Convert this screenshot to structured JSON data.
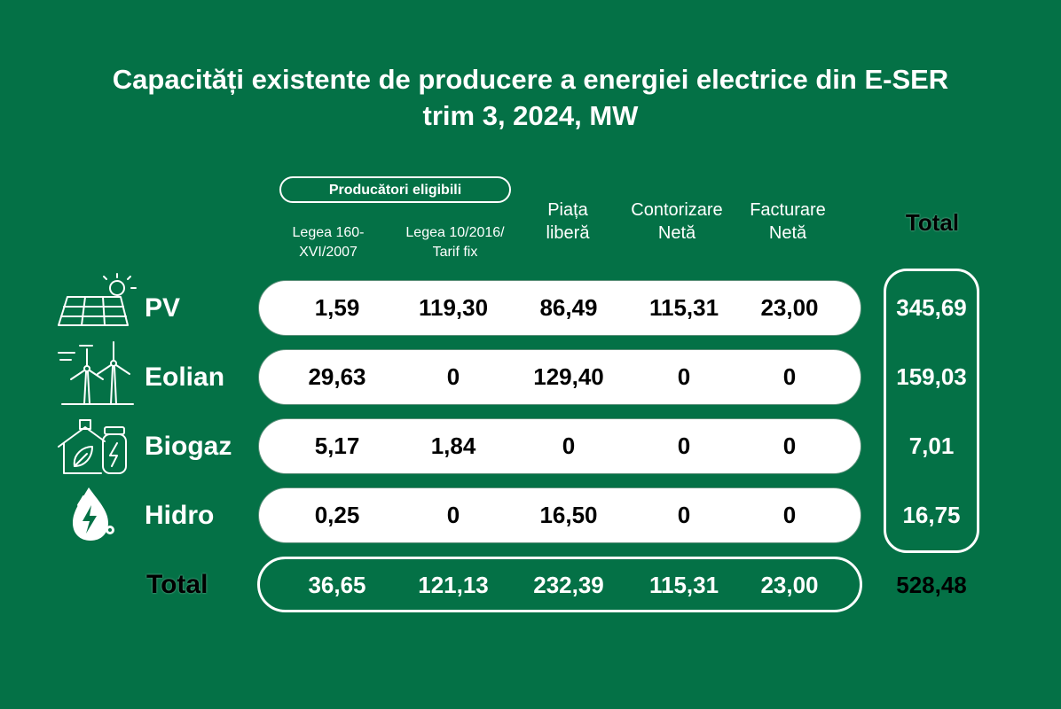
{
  "title_line1": "Capacități existente de producere a energiei electrice din E-SER",
  "title_line2": "trim 3, 2024, MW",
  "group_header": "Producători eligibili",
  "columns": [
    {
      "line1": "Legea 160-",
      "line2": "XVI/2007"
    },
    {
      "line1": "Legea 10/2016/",
      "line2": "Tarif fix"
    },
    {
      "line1": "Piața",
      "line2": "liberă"
    },
    {
      "line1": "Contorizare",
      "line2": "Netă"
    },
    {
      "line1": "Facturare",
      "line2": "Netă"
    }
  ],
  "total_header": "Total",
  "total_row_label": "Total",
  "rows": [
    {
      "label": "PV",
      "icon": "solar-panel-icon",
      "values": [
        "1,59",
        "119,30",
        "86,49",
        "115,31",
        "23,00"
      ],
      "total": "345,69"
    },
    {
      "label": "Eolian",
      "icon": "wind-turbine-icon",
      "values": [
        "29,63",
        "0",
        "129,40",
        "0",
        "0"
      ],
      "total": "159,03"
    },
    {
      "label": "Biogaz",
      "icon": "biogas-icon",
      "values": [
        "5,17",
        "1,84",
        "0",
        "0",
        "0"
      ],
      "total": "7,01"
    },
    {
      "label": "Hidro",
      "icon": "hydro-drop-icon",
      "values": [
        "0,25",
        "0",
        "16,50",
        "0",
        "0"
      ],
      "total": "16,75"
    }
  ],
  "totals": [
    "36,65",
    "121,13",
    "232,39",
    "115,31",
    "23,00"
  ],
  "grand_total": "528,48",
  "colors": {
    "background": "#047146",
    "text": "#ffffff",
    "pill": "#ffffff",
    "value_text": "#000000"
  },
  "chart_data": {
    "type": "table",
    "title": "Capacități existente de producere a energiei electrice din E-SER trim 3, 2024, MW",
    "columns": [
      "Legea 160-XVI/2007",
      "Legea 10/2016/Tarif fix",
      "Piața liberă",
      "Contorizare Netă",
      "Facturare Netă",
      "Total"
    ],
    "rows": [
      {
        "name": "PV",
        "values": [
          1.59,
          119.3,
          86.49,
          115.31,
          23.0,
          345.69
        ]
      },
      {
        "name": "Eolian",
        "values": [
          29.63,
          0,
          129.4,
          0,
          0,
          159.03
        ]
      },
      {
        "name": "Biogaz",
        "values": [
          5.17,
          1.84,
          0,
          0,
          0,
          7.01
        ]
      },
      {
        "name": "Hidro",
        "values": [
          0.25,
          0,
          16.5,
          0,
          0,
          16.75
        ]
      },
      {
        "name": "Total",
        "values": [
          36.65,
          121.13,
          232.39,
          115.31,
          23.0,
          528.48
        ]
      }
    ]
  }
}
